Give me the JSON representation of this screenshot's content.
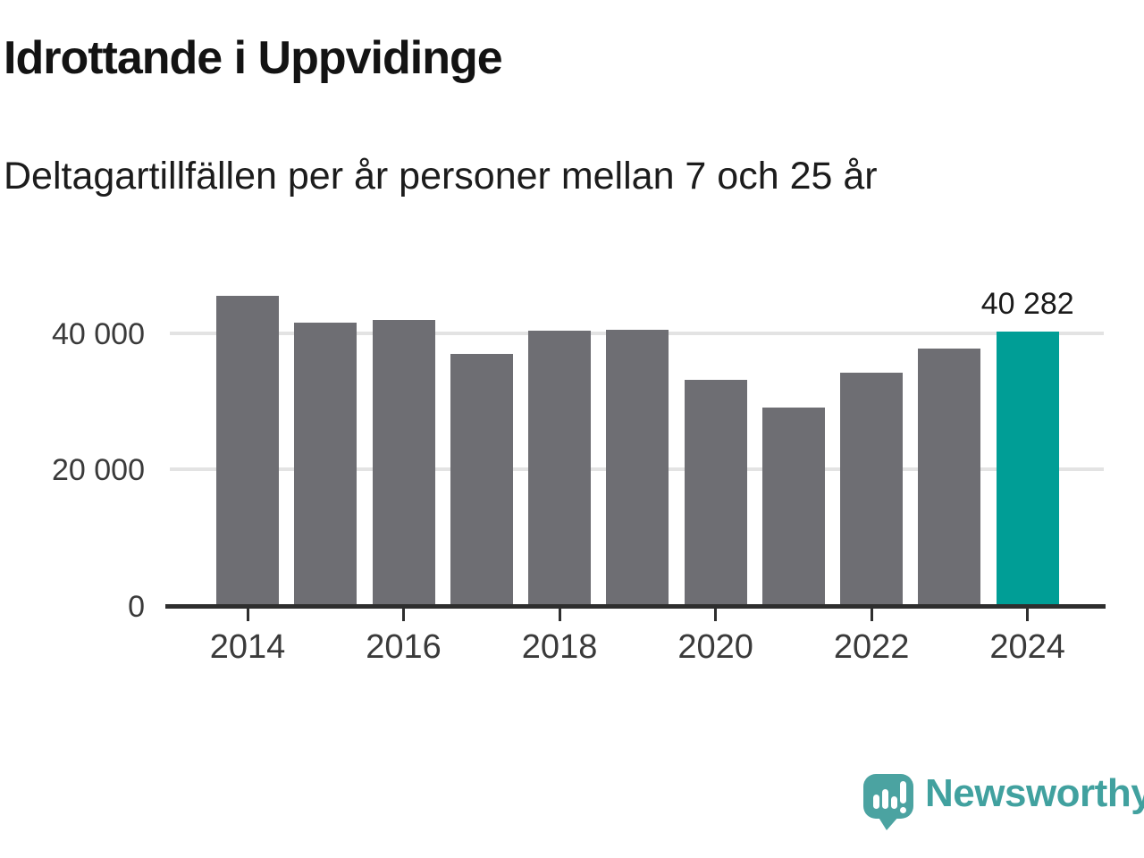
{
  "header": {
    "title": "Idrottande i Uppvidinge",
    "subtitle": "Deltagartillfällen per år personer mellan 7 och 25 år"
  },
  "chart_data": {
    "type": "bar",
    "title": "Idrottande i Uppvidinge",
    "subtitle": "Deltagartillfällen per år personer mellan 7 och 25 år",
    "categories": [
      "2014",
      "2015",
      "2016",
      "2017",
      "2018",
      "2019",
      "2020",
      "2021",
      "2022",
      "2023",
      "2024"
    ],
    "values": [
      45500,
      41500,
      42000,
      37000,
      40400,
      40500,
      33200,
      29100,
      34200,
      37700,
      40282
    ],
    "highlight_index": 10,
    "annotation": {
      "index": 10,
      "text": "40 282"
    },
    "yticks": [
      {
        "value": 0,
        "label": "0"
      },
      {
        "value": 20000,
        "label": "20 000"
      },
      {
        "value": 40000,
        "label": "40 000"
      }
    ],
    "xtick_labels": [
      "2014",
      "2016",
      "2018",
      "2020",
      "2022",
      "2024"
    ],
    "ylim": [
      0,
      46500
    ],
    "grid": "horizontal",
    "legend": "none",
    "colors": {
      "bar": "#6e6e73",
      "highlight": "#009e96",
      "gridline": "#e3e3e3",
      "axis": "#2e2e2e"
    }
  },
  "branding": {
    "logo_icon": "newsworthy-speech-bubble-chart-icon",
    "logo_text": "Newsworthy",
    "logo_color": "#4ba3a1"
  }
}
